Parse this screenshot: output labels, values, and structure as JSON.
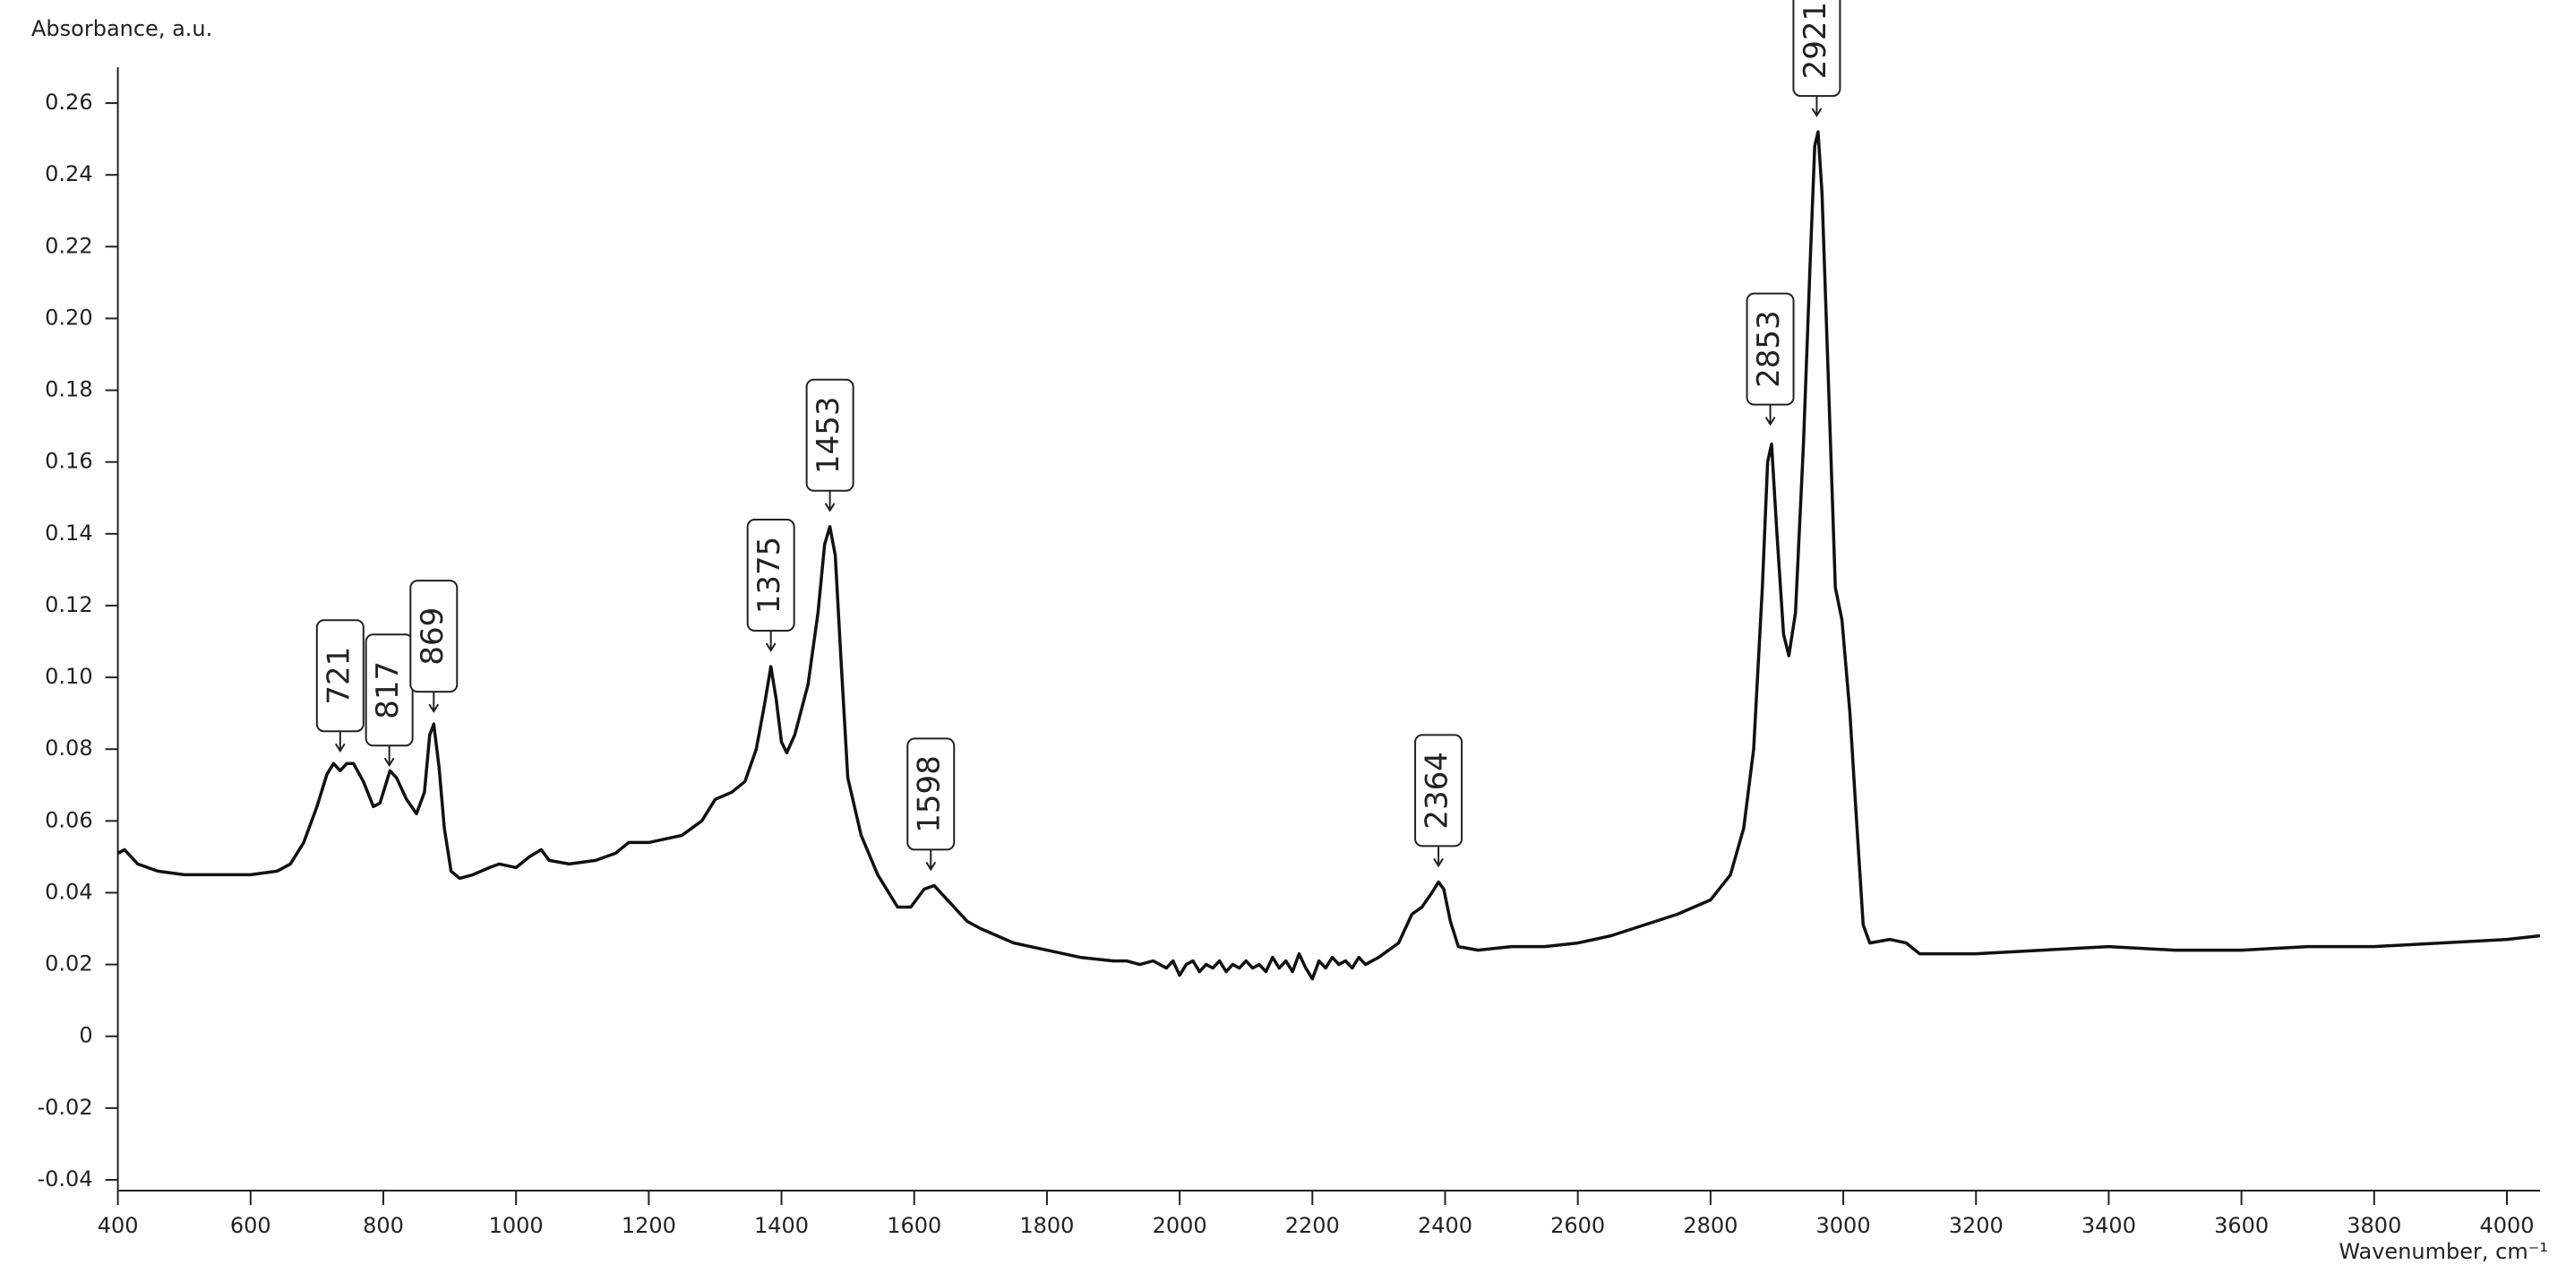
{
  "chart_data": {
    "type": "line",
    "y_label": "Absorbance, a.u.",
    "x_label": "Wavenumber, cm⁻¹",
    "color": "#111111",
    "xlim": [
      400,
      4050
    ],
    "ylim": [
      -0.043,
      0.27
    ],
    "xticks": [
      400,
      600,
      800,
      1000,
      1200,
      1400,
      1600,
      1800,
      2000,
      2200,
      2400,
      2600,
      2800,
      3000,
      3200,
      3400,
      3600,
      3800,
      4000
    ],
    "yticks": [
      -0.04,
      -0.02,
      0,
      0.02,
      0.04,
      0.06,
      0.08,
      {
        "value": 0.1,
        "label": "0.10"
      },
      0.12,
      0.14,
      0.16,
      0.18,
      {
        "value": 0.2,
        "label": "0.20"
      },
      0.22,
      0.24,
      0.26
    ],
    "x": [
      400,
      410,
      420,
      430,
      460,
      500,
      550,
      600,
      640,
      660,
      680,
      700,
      715,
      725,
      735,
      745,
      755,
      770,
      785,
      795,
      810,
      820,
      835,
      850,
      862,
      870,
      876,
      884,
      892,
      902,
      915,
      935,
      960,
      975,
      1000,
      1020,
      1038,
      1050,
      1080,
      1120,
      1150,
      1170,
      1200,
      1250,
      1280,
      1300,
      1325,
      1345,
      1362,
      1374,
      1384,
      1392,
      1400,
      1408,
      1420,
      1440,
      1455,
      1465,
      1473,
      1481,
      1490,
      1500,
      1520,
      1545,
      1575,
      1595,
      1615,
      1630,
      1650,
      1680,
      1700,
      1750,
      1800,
      1850,
      1900,
      1920,
      1940,
      1960,
      1980,
      1990,
      2000,
      2010,
      2020,
      2030,
      2040,
      2050,
      2060,
      2070,
      2080,
      2090,
      2100,
      2110,
      2120,
      2130,
      2140,
      2150,
      2160,
      2170,
      2180,
      2190,
      2200,
      2210,
      2220,
      2230,
      2240,
      2250,
      2260,
      2270,
      2280,
      2300,
      2330,
      2350,
      2365,
      2380,
      2390,
      2398,
      2408,
      2420,
      2450,
      2500,
      2550,
      2600,
      2650,
      2700,
      2750,
      2800,
      2830,
      2850,
      2865,
      2878,
      2886,
      2892,
      2900,
      2910,
      2918,
      2928,
      2940,
      2950,
      2957,
      2962,
      2968,
      2978,
      2988,
      2998,
      3010,
      3020,
      3030,
      3040,
      3070,
      3095,
      3115,
      3200,
      3300,
      3400,
      3500,
      3600,
      3700,
      3800,
      3900,
      4000,
      4050
    ],
    "values": [
      0.051,
      0.052,
      0.05,
      0.048,
      0.046,
      0.045,
      0.045,
      0.045,
      0.046,
      0.048,
      0.054,
      0.064,
      0.073,
      0.076,
      0.074,
      0.076,
      0.076,
      0.071,
      0.064,
      0.065,
      0.074,
      0.072,
      0.066,
      0.062,
      0.068,
      0.084,
      0.087,
      0.075,
      0.058,
      0.046,
      0.044,
      0.045,
      0.047,
      0.048,
      0.047,
      0.05,
      0.052,
      0.049,
      0.048,
      0.049,
      0.051,
      0.054,
      0.054,
      0.056,
      0.06,
      0.066,
      0.068,
      0.071,
      0.08,
      0.092,
      0.103,
      0.094,
      0.082,
      0.079,
      0.084,
      0.098,
      0.118,
      0.137,
      0.142,
      0.134,
      0.104,
      0.072,
      0.056,
      0.045,
      0.036,
      0.036,
      0.041,
      0.042,
      0.038,
      0.032,
      0.03,
      0.026,
      0.024,
      0.022,
      0.021,
      0.021,
      0.02,
      0.021,
      0.019,
      0.021,
      0.017,
      0.02,
      0.021,
      0.018,
      0.02,
      0.019,
      0.021,
      0.018,
      0.02,
      0.019,
      0.021,
      0.019,
      0.02,
      0.018,
      0.022,
      0.019,
      0.021,
      0.018,
      0.023,
      0.019,
      0.016,
      0.021,
      0.019,
      0.022,
      0.02,
      0.021,
      0.019,
      0.022,
      0.02,
      0.022,
      0.026,
      0.034,
      0.036,
      0.04,
      0.043,
      0.041,
      0.032,
      0.025,
      0.024,
      0.025,
      0.025,
      0.026,
      0.028,
      0.031,
      0.034,
      0.038,
      0.045,
      0.058,
      0.08,
      0.125,
      0.16,
      0.165,
      0.14,
      0.112,
      0.106,
      0.118,
      0.165,
      0.215,
      0.248,
      0.252,
      0.235,
      0.18,
      0.125,
      0.116,
      0.09,
      0.06,
      0.031,
      0.026,
      0.027,
      0.026,
      0.023,
      0.023,
      0.024,
      0.025,
      0.024,
      0.024,
      0.025,
      0.025,
      0.026,
      0.027,
      0.028
    ],
    "annotations": [
      {
        "text": "721",
        "x": 735,
        "y": 0.079
      },
      {
        "text": "817",
        "x": 809,
        "y": 0.075
      },
      {
        "text": "869",
        "x": 876,
        "y": 0.09
      },
      {
        "text": "1375",
        "x": 1384,
        "y": 0.107
      },
      {
        "text": "1453",
        "x": 1473,
        "y": 0.146
      },
      {
        "text": "1598",
        "x": 1625,
        "y": 0.046
      },
      {
        "text": "2364",
        "x": 2390,
        "y": 0.047
      },
      {
        "text": "2853",
        "x": 2890,
        "y": 0.17
      },
      {
        "text": "2921",
        "x": 2960,
        "y": 0.256
      }
    ]
  }
}
